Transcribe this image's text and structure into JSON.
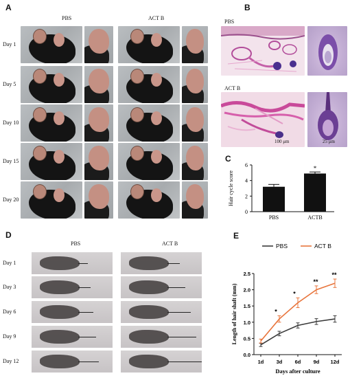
{
  "panels": {
    "a": {
      "label": "A",
      "groups": [
        "PBS",
        "ACT B"
      ],
      "days": [
        "Day 1",
        "Day 5",
        "Day 10",
        "Day 15",
        "Day 20"
      ]
    },
    "b": {
      "label": "B",
      "rows": [
        "PBS",
        "ACT B"
      ],
      "scale_left": "100 μm",
      "scale_right": "25 μm"
    },
    "c": {
      "label": "C"
    },
    "d": {
      "label": "D",
      "groups": [
        "PBS",
        "ACT B"
      ],
      "days": [
        "Day 1",
        "Day 3",
        "Day 6",
        "Day 9",
        "Day 12"
      ]
    },
    "e": {
      "label": "E"
    }
  },
  "chart_data": [
    {
      "type": "bar",
      "categories": [
        "PBS",
        "ACTB"
      ],
      "values": [
        3.2,
        4.9
      ],
      "errors": [
        0.3,
        0.2
      ],
      "ylabel": "Hair cycle score",
      "ylim": [
        0,
        6
      ],
      "yticks": [
        0,
        2,
        4,
        6
      ],
      "annotations": [
        {
          "category": "ACTB",
          "text": "*"
        }
      ],
      "colors": {
        "bar": "#111111"
      }
    },
    {
      "type": "line",
      "x": [
        "1d",
        "3d",
        "6d",
        "9d",
        "12d"
      ],
      "xlabel": "Days after culture",
      "ylabel": "Length of hair shaft (mm)",
      "ylim": [
        0,
        2.5
      ],
      "yticks": [
        "0.0",
        "0.5",
        "1.0",
        "1.5",
        "2.0",
        "2.5"
      ],
      "legend_position": "top",
      "series": [
        {
          "name": "PBS",
          "values": [
            0.3,
            0.65,
            0.9,
            1.02,
            1.1
          ],
          "errors": [
            0.05,
            0.07,
            0.08,
            0.09,
            0.1
          ],
          "color": "#3a3a3a"
        },
        {
          "name": "ACT B",
          "values": [
            0.42,
            1.1,
            1.6,
            2.0,
            2.2
          ],
          "errors": [
            0.06,
            0.1,
            0.15,
            0.12,
            0.13
          ],
          "color": "#e8743b"
        }
      ],
      "annotations": [
        {
          "x": "3d",
          "text": "*"
        },
        {
          "x": "6d",
          "text": "*"
        },
        {
          "x": "9d",
          "text": "**"
        },
        {
          "x": "12d",
          "text": "**"
        }
      ]
    }
  ]
}
